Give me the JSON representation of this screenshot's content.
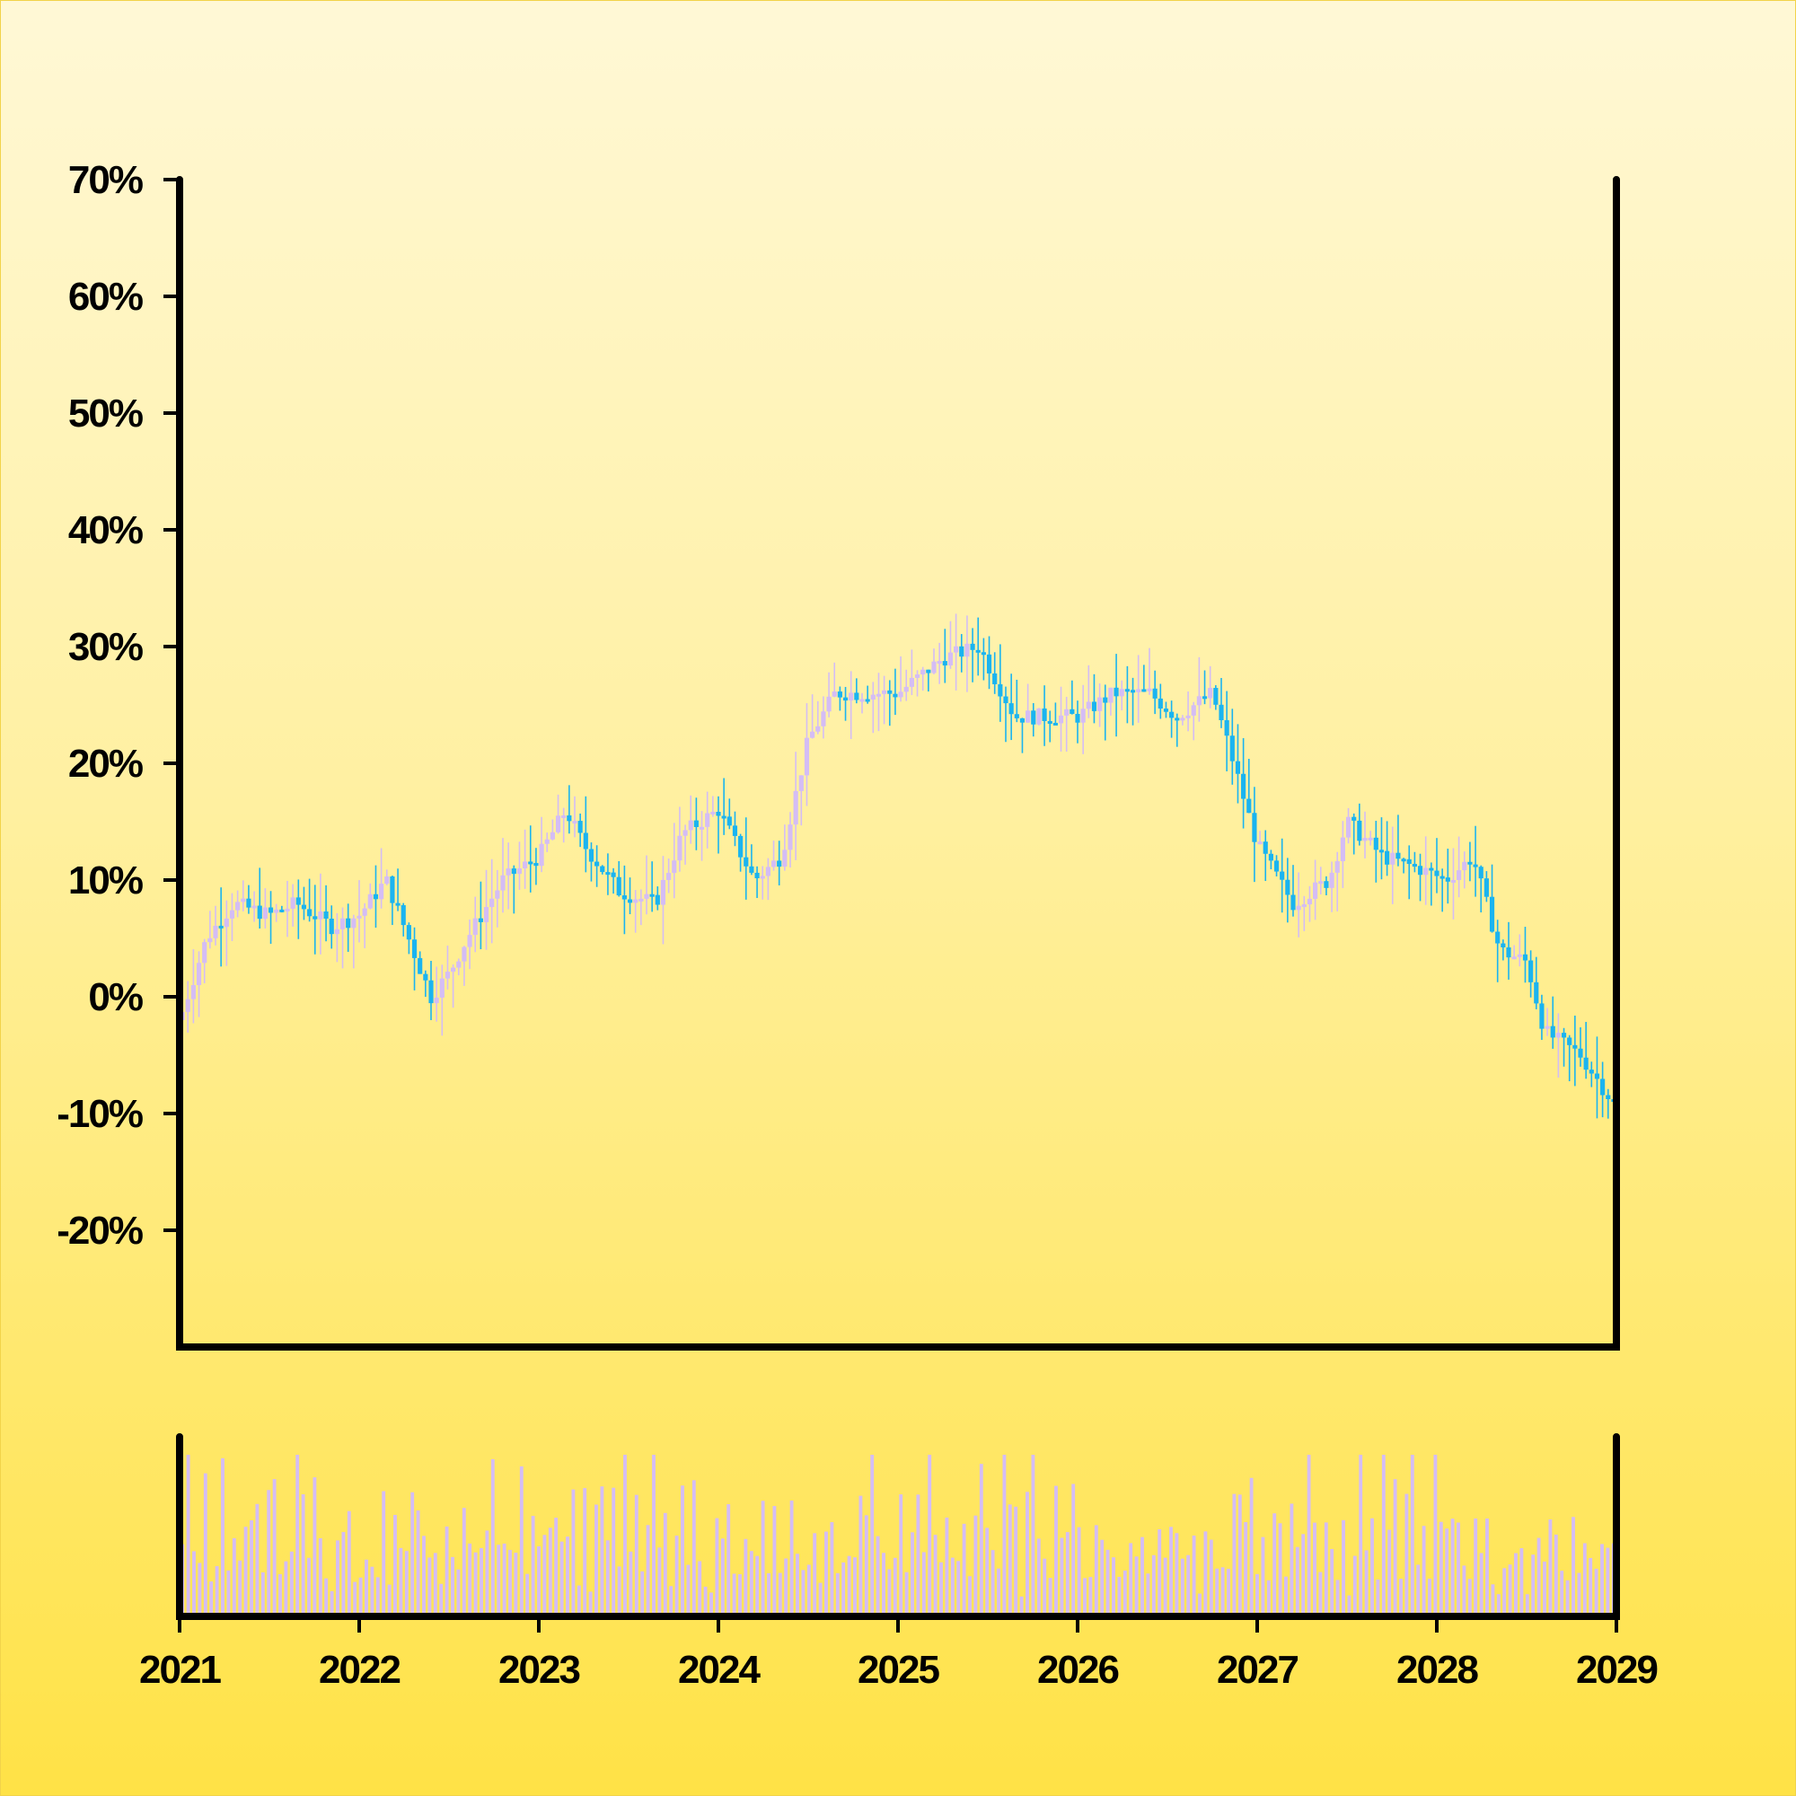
{
  "chart_data": [
    {
      "type": "candlestick",
      "title": "",
      "xlabel": "",
      "ylabel": "",
      "x_range": [
        "2021",
        "2029"
      ],
      "x_ticks": [
        "2021",
        "2022",
        "2023",
        "2024",
        "2025",
        "2026",
        "2027",
        "2028",
        "2029"
      ],
      "y_range": [
        -30,
        70
      ],
      "y_ticks": [
        {
          "value": -20,
          "label": "-20%"
        },
        {
          "value": -10,
          "label": "-10%"
        },
        {
          "value": 0,
          "label": "0%"
        },
        {
          "value": 10,
          "label": "10%"
        },
        {
          "value": 20,
          "label": "20%"
        },
        {
          "value": 30,
          "label": "30%"
        },
        {
          "value": 40,
          "label": "40%"
        },
        {
          "value": 50,
          "label": "50%"
        },
        {
          "value": 60,
          "label": "60%"
        },
        {
          "value": 70,
          "label": "70%"
        }
      ],
      "y_unit": "%",
      "grid": false,
      "up_color": "#d4bdf5",
      "down_color": "#1ab4f0",
      "close_series": {
        "x": [
          2021.0,
          2021.15,
          2021.3,
          2021.5,
          2021.65,
          2021.85,
          2022.0,
          2022.15,
          2022.25,
          2022.4,
          2022.5,
          2022.6,
          2022.8,
          2023.0,
          2023.15,
          2023.25,
          2023.45,
          2023.65,
          2023.8,
          2024.0,
          2024.2,
          2024.35,
          2024.5,
          2024.65,
          2024.85,
          2025.0,
          2025.25,
          2025.45,
          2025.65,
          2025.85,
          2026.0,
          2026.2,
          2026.4,
          2026.55,
          2026.75,
          2026.85,
          2027.0,
          2027.2,
          2027.4,
          2027.5,
          2027.7,
          2027.9,
          2028.05,
          2028.2,
          2028.35,
          2028.5,
          2028.6,
          2028.8,
          2028.98
        ],
        "y": [
          -2,
          5,
          8,
          7,
          8,
          6,
          7,
          10,
          6,
          0,
          2,
          5,
          10,
          12,
          16,
          13,
          9,
          8,
          14,
          16,
          10,
          12,
          22,
          26,
          26,
          26,
          29,
          30,
          24,
          24,
          24,
          26,
          26,
          24,
          26,
          21,
          13,
          8,
          10,
          15,
          12,
          11,
          10,
          12,
          4,
          3,
          -3,
          -5,
          -9
        ]
      },
      "volume": {
        "note_levels": [
          0.35,
          0.6,
          0.85
        ],
        "values": [
          0.4,
          0.8,
          0.6,
          0.3,
          0.7,
          0.2,
          0.5,
          0.9,
          0.4,
          0.6,
          0.3,
          0.8,
          0.5,
          0.7,
          0.2,
          0.6,
          0.9,
          0.4,
          0.5,
          0.3,
          0.8,
          0.6,
          0.4,
          0.7,
          0.5,
          0.3,
          0.2,
          0.5,
          0.4,
          0.6,
          0.3,
          0.2,
          0.4,
          0.5,
          0.3,
          0.6,
          0.2,
          0.5,
          0.4,
          0.3,
          0.6,
          0.5,
          0.4,
          0.3,
          0.5,
          0.2,
          0.4,
          0.6,
          0.3,
          0.5,
          0.4,
          0.6,
          0.7,
          0.5,
          0.8,
          0.4,
          0.6,
          0.3,
          0.5,
          0.7,
          0.4,
          0.8,
          0.6,
          0.5,
          0.9,
          0.7
        ]
      }
    }
  ]
}
